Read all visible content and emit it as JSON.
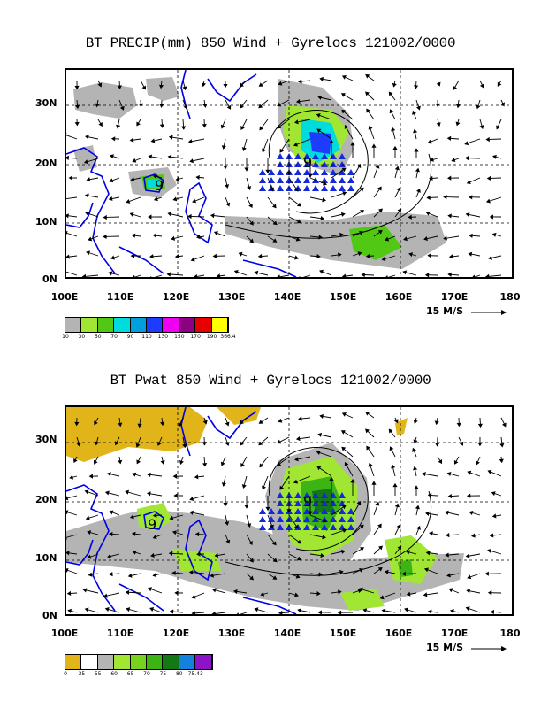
{
  "panels": [
    {
      "title": "BT PRECIP(mm) 850 Wind + Gyrelocs 121002/0000",
      "y_labels": [
        "30N",
        "20N",
        "10N",
        "0N"
      ],
      "x_labels": [
        "100E",
        "110E",
        "120E",
        "130E",
        "140E",
        "150E",
        "160E",
        "170E",
        "180"
      ],
      "scale_label": "15 M/S",
      "colorbar_colors": [
        "#b4b4b4",
        "#a0e632",
        "#50c814",
        "#00dcdc",
        "#00a0dc",
        "#1e3cff",
        "#f000f0",
        "#8c0082",
        "#e60000",
        "#ffff00"
      ],
      "colorbar_labels": [
        "10",
        "30",
        "50",
        "70",
        "90",
        "110",
        "130",
        "150",
        "170",
        "190",
        "366.4"
      ],
      "gyre_markers": [
        "9",
        "9"
      ]
    },
    {
      "title": "BT Pwat 850 Wind + Gyrelocs 121002/0000",
      "y_labels": [
        "30N",
        "20N",
        "10N",
        "0N"
      ],
      "x_labels": [
        "100E",
        "110E",
        "120E",
        "130E",
        "140E",
        "150E",
        "160E",
        "170E",
        "180"
      ],
      "scale_label": "15 M/S",
      "colorbar_colors": [
        "#e1b419",
        "#ffffff",
        "#b4b4b4",
        "#a0e632",
        "#78d21e",
        "#3cb414",
        "#147814",
        "#1482dc",
        "#8c14c8"
      ],
      "colorbar_labels": [
        "0",
        "35",
        "55",
        "60",
        "65",
        "70",
        "75",
        "80",
        "75.43"
      ],
      "gyre_markers": [
        "9",
        "9"
      ]
    }
  ]
}
